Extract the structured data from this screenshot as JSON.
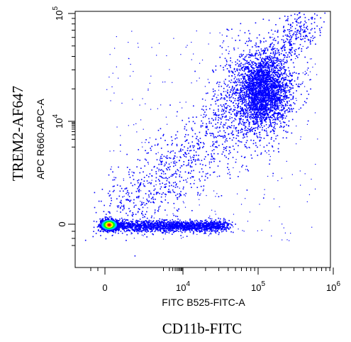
{
  "chart_data": {
    "type": "scatter",
    "style": "density dot plot (flow cytometry)",
    "x_axis": {
      "label": "FITC B525-FITC-A",
      "outer_label": "CD11b-FITC",
      "scale": "logicle",
      "ticks": [
        {
          "value": 0,
          "label": "0"
        },
        {
          "value": 10000,
          "base": "10",
          "exp": "4"
        },
        {
          "value": 100000,
          "base": "10",
          "exp": "5"
        },
        {
          "value": 1000000,
          "base": "10",
          "exp": "6"
        }
      ]
    },
    "y_axis": {
      "label": "APC R660-APC-A",
      "outer_label": "TREM2-AF647",
      "scale": "logicle",
      "ticks": [
        {
          "value": 0,
          "label": "0"
        },
        {
          "value": 10000,
          "base": "10",
          "exp": "4"
        },
        {
          "value": 100000,
          "base": "10",
          "exp": "5"
        }
      ]
    },
    "populations": [
      {
        "name_hint": "negative",
        "x_center": 0,
        "y_center": 0,
        "density": "peak",
        "colors": [
          "#ff0000",
          "#ffff00",
          "#00ff00",
          "#00c8ff"
        ]
      },
      {
        "name_hint": "CD11b+ TREM2-",
        "x_range": [
          1000,
          40000
        ],
        "y_center": 0,
        "density": "medium"
      },
      {
        "name_hint": "CD11b+ TREM2+",
        "x_center": 120000,
        "y_center": 45000,
        "density": "high"
      },
      {
        "name_hint": "diagonal tail",
        "x_range": [
          200000,
          600000
        ],
        "y_range": [
          60000,
          150000
        ],
        "density": "sparse"
      }
    ],
    "point_color": "#0000ff"
  }
}
